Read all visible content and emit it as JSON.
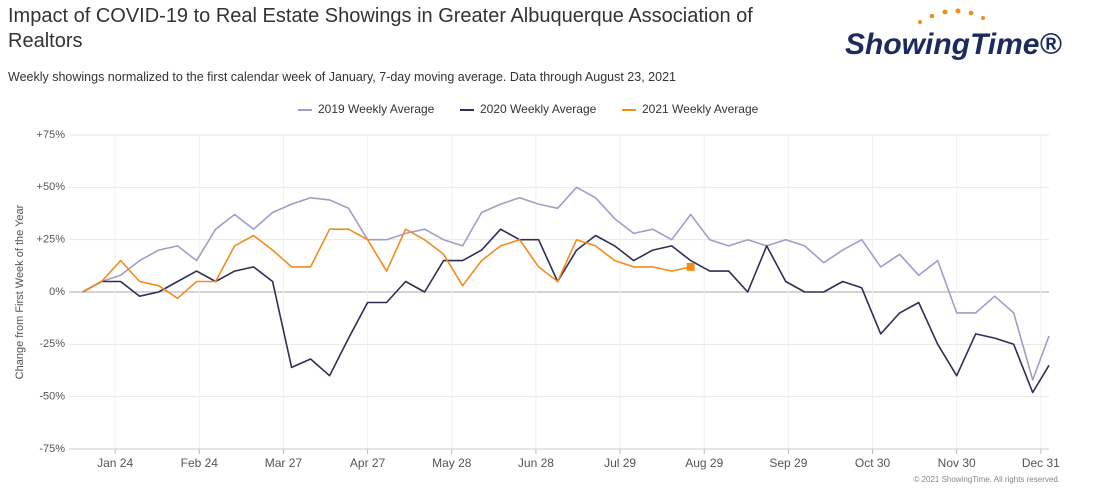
{
  "chart_data": {
    "type": "line",
    "title": "Impact of COVID-19 to Real Estate Showings in Greater Albuquerque Association of Realtors",
    "subtitle": "Weekly showings normalized to the first calendar week of January, 7-day moving average. Data through August 23, 2021",
    "logo": "ShowingTime®",
    "ylabel": "Change from First Week of the Year",
    "footer": "© 2021 ShowingTime. All rights reserved.",
    "xlim": [
      7,
      368
    ],
    "xticks": [
      {
        "value": 24,
        "label": "Jan 24"
      },
      {
        "value": 55,
        "label": "Feb 24"
      },
      {
        "value": 86,
        "label": "Mar 27"
      },
      {
        "value": 117,
        "label": "Apr 27"
      },
      {
        "value": 148,
        "label": "May 28"
      },
      {
        "value": 179,
        "label": "Jun 28"
      },
      {
        "value": 210,
        "label": "Jul 29"
      },
      {
        "value": 241,
        "label": "Aug 29"
      },
      {
        "value": 272,
        "label": "Sep 29"
      },
      {
        "value": 303,
        "label": "Oct 30"
      },
      {
        "value": 334,
        "label": "Nov 30"
      },
      {
        "value": 365,
        "label": "Dec 31"
      }
    ],
    "ylim": [
      -75,
      75
    ],
    "yticks": [
      {
        "value": 75,
        "label": "+75%"
      },
      {
        "value": 50,
        "label": "+50%"
      },
      {
        "value": 25,
        "label": "+25%"
      },
      {
        "value": 0,
        "label": "0%"
      },
      {
        "value": -25,
        "label": "-25%"
      },
      {
        "value": -50,
        "label": "-50%"
      },
      {
        "value": -75,
        "label": "-75%"
      }
    ],
    "grid": true,
    "legend": "top",
    "x": [
      12,
      19,
      26,
      33,
      40,
      47,
      54,
      61,
      68,
      75,
      82,
      89,
      96,
      103,
      110,
      117,
      124,
      131,
      138,
      145,
      152,
      159,
      166,
      173,
      180,
      187,
      194,
      201,
      208,
      215,
      222,
      229,
      236,
      243,
      250,
      257,
      264,
      271,
      278,
      285,
      292,
      299,
      306,
      313,
      320,
      327,
      334,
      341,
      348,
      355,
      362,
      368
    ],
    "series": [
      {
        "name": "2019 Weekly Average",
        "color": "#a19dca",
        "values": [
          0,
          5,
          8,
          15,
          20,
          22,
          15,
          30,
          37,
          30,
          38,
          42,
          45,
          44,
          40,
          25,
          25,
          28,
          30,
          25,
          22,
          38,
          42,
          45,
          42,
          40,
          50,
          45,
          35,
          28,
          30,
          25,
          37,
          25,
          22,
          25,
          22,
          25,
          22,
          14,
          20,
          25,
          12,
          18,
          8,
          15,
          -10,
          -10,
          -2,
          -10,
          -42,
          -21
        ]
      },
      {
        "name": "2020 Weekly Average",
        "color": "#2e2f55",
        "values": [
          0,
          5,
          5,
          -2,
          0,
          5,
          10,
          5,
          10,
          12,
          5,
          -36,
          -32,
          -40,
          -22,
          -5,
          -5,
          5,
          0,
          15,
          15,
          20,
          30,
          25,
          25,
          5,
          20,
          27,
          22,
          15,
          20,
          22,
          15,
          10,
          10,
          0,
          22,
          5,
          0,
          0,
          5,
          2,
          -20,
          -10,
          -5,
          -25,
          -40,
          -20,
          -22,
          -25,
          -48,
          -35
        ]
      },
      {
        "name": "2021 Weekly Average",
        "color": "#f28c1e",
        "values": [
          0,
          5,
          15,
          5,
          3,
          -3,
          5,
          5,
          22,
          27,
          20,
          12,
          12,
          30,
          30,
          25,
          10,
          30,
          25,
          18,
          3,
          15,
          22,
          25,
          12,
          5,
          25,
          22,
          15,
          12,
          12,
          10,
          12,
          null,
          null,
          null,
          null,
          null,
          null,
          null,
          null,
          null,
          null,
          null,
          null,
          null,
          null,
          null,
          null,
          null,
          null,
          null
        ]
      }
    ]
  }
}
